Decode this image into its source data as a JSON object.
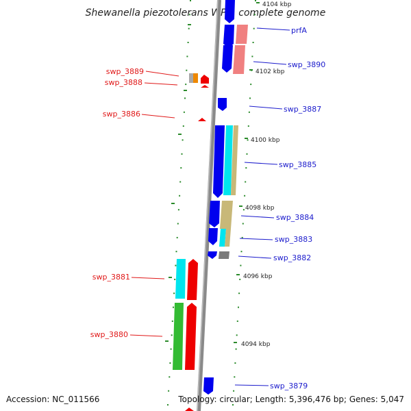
{
  "title": "Shewanella piezotolerans WP3, complete genome",
  "footer": {
    "accession": "Accession: NC_011566",
    "topology": "Topology: circular; Length: 5,396,476 bp; Genes: 5,047"
  },
  "scale_labels": [
    "4104 kbp",
    "4102 kbp",
    "4100 kbp",
    "4098 kbp",
    "4096 kbp",
    "4094 kbp"
  ],
  "genes_right": [
    "prfA",
    "swp_3890",
    "swp_3887",
    "swp_3885",
    "swp_3884",
    "swp_3883",
    "swp_3882",
    "swp_3879"
  ],
  "genes_left": [
    "swp_3889",
    "swp_3888",
    "swp_3886",
    "swp_3881",
    "swp_3880"
  ],
  "colors": {
    "blue": "#0000ee",
    "pink": "#f08080",
    "cyan": "#00e5ee",
    "khaki": "#c8b878",
    "red": "#ee0000",
    "green": "#33bb33",
    "gray": "#7a7a7a",
    "orange": "#ee8800",
    "backbone": "#888888",
    "tick": "#2a8a2a"
  }
}
